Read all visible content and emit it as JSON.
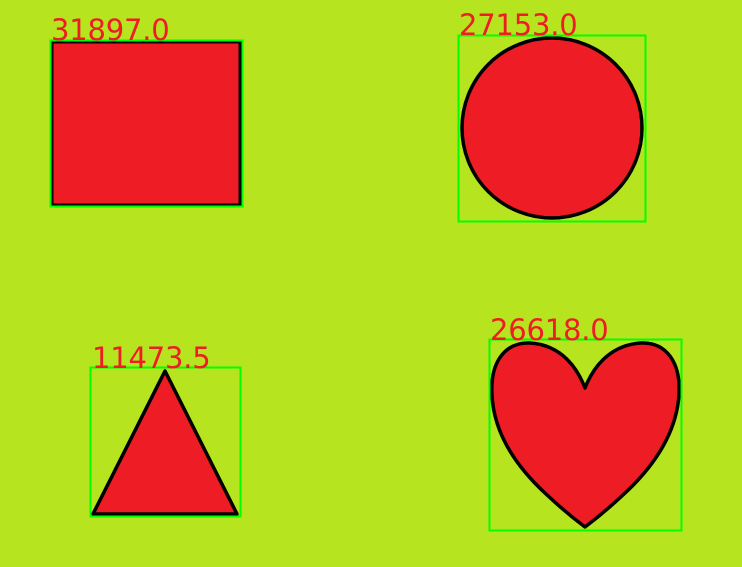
{
  "colors": {
    "background": "#b6e41f",
    "shape_fill": "#ee1c24",
    "shape_outline": "#000000",
    "bounding_box": "#00ff00",
    "label_text": "#ee1c24"
  },
  "shapes": [
    {
      "shape": "square",
      "area_label": "31897.0"
    },
    {
      "shape": "circle",
      "area_label": "27153.0"
    },
    {
      "shape": "triangle",
      "area_label": "11473.5"
    },
    {
      "shape": "heart",
      "area_label": "26618.0"
    }
  ]
}
